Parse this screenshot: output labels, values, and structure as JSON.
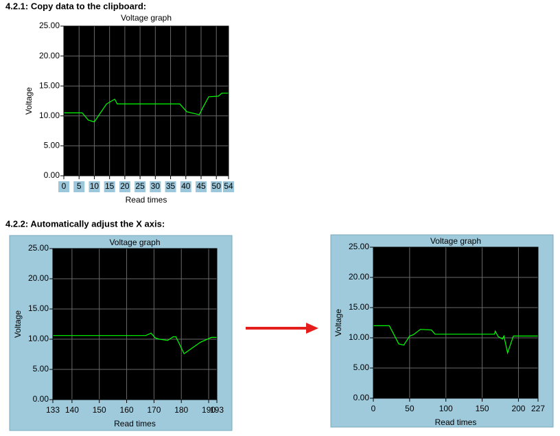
{
  "headings": [
    "4.2.1:  Copy data to the clipboard:",
    "4.2.2: Automatically adjust the X axis:"
  ],
  "chart_data": [
    {
      "type": "line",
      "title": "Voltage graph",
      "xlabel": "Read times",
      "ylabel": "Voltage",
      "color": "#00ff00",
      "x": [
        0,
        6,
        8,
        10,
        14,
        16.7,
        17.5,
        38,
        40.3,
        44.4,
        45.7,
        47.5,
        50.7,
        51.8,
        54
      ],
      "values": [
        10.5,
        10.5,
        9.3,
        9,
        12,
        12.8,
        12,
        12,
        10.7,
        10.2,
        11.5,
        13.2,
        13.3,
        13.8,
        13.8
      ],
      "xlim": [
        0,
        54
      ],
      "xticks": [
        0,
        5,
        10,
        15,
        20,
        25,
        30,
        35,
        40,
        45,
        50,
        54
      ],
      "ylim": [
        0,
        25
      ],
      "yticks": [
        {
          "value": 0,
          "label": "0.00"
        },
        {
          "value": 5,
          "label": "5.00"
        },
        {
          "value": 10,
          "label": "10.00"
        },
        {
          "value": 15,
          "label": "15.00"
        },
        {
          "value": 20,
          "label": "20.00"
        },
        {
          "value": 25,
          "label": "25.00"
        }
      ],
      "grid": true,
      "xtick_label_background": "#9cc7da"
    },
    {
      "type": "line",
      "title": "Voltage graph",
      "xlabel": "Read times",
      "ylabel": "Voltage",
      "color": "#00ff00",
      "x": [
        133,
        167,
        168.9,
        170.5,
        172,
        175,
        177,
        178,
        181,
        187,
        191,
        193
      ],
      "values": [
        10.6,
        10.6,
        11,
        10.2,
        10,
        9.8,
        10.4,
        10.4,
        7.6,
        9.5,
        10.3,
        10.3
      ],
      "xlim": [
        133,
        193
      ],
      "xticks": [
        133,
        140,
        150,
        160,
        170,
        180,
        190,
        193
      ],
      "ylim": [
        0,
        25
      ],
      "yticks": [
        {
          "value": 0,
          "label": "0.00"
        },
        {
          "value": 5,
          "label": "5.00"
        },
        {
          "value": 10,
          "label": "10.00"
        },
        {
          "value": 15,
          "label": "15.00"
        },
        {
          "value": 20,
          "label": "20.00"
        },
        {
          "value": 25,
          "label": "25.00"
        }
      ],
      "grid": true
    },
    {
      "type": "line",
      "title": "Voltage graph",
      "xlabel": "Read times",
      "ylabel": "Voltage",
      "color": "#00ff00",
      "x": [
        0,
        22,
        35,
        42,
        50,
        55,
        65,
        80,
        85,
        167,
        168,
        172,
        178,
        180,
        185,
        193,
        227
      ],
      "values": [
        12,
        12,
        9,
        8.8,
        10.3,
        10.5,
        11.4,
        11.3,
        10.6,
        10.6,
        11.1,
        10.2,
        9.8,
        10.3,
        7.5,
        10.3,
        10.3
      ],
      "xlim": [
        0,
        227
      ],
      "xticks": [
        0,
        50,
        100,
        150,
        200,
        227
      ],
      "ylim": [
        0,
        25
      ],
      "yticks": [
        {
          "value": 0,
          "label": "0.00"
        },
        {
          "value": 5,
          "label": "5.00"
        },
        {
          "value": 10,
          "label": "10.00"
        },
        {
          "value": 15,
          "label": "15.00"
        },
        {
          "value": 20,
          "label": "20.00"
        },
        {
          "value": 25,
          "label": "25.00"
        }
      ],
      "grid": true
    }
  ]
}
